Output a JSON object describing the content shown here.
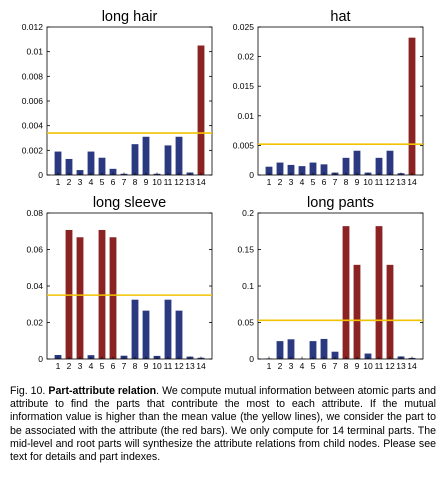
{
  "colors": {
    "attribute_bar": "#8b2323",
    "other_bar": "#2b3a80",
    "mean_line": "#f2c200",
    "axis": "#000000"
  },
  "chart_data": [
    {
      "type": "bar",
      "title": "long hair",
      "categories": [
        "1",
        "2",
        "3",
        "4",
        "5",
        "6",
        "7",
        "8",
        "9",
        "10",
        "11",
        "12",
        "13",
        "14"
      ],
      "values": [
        0.0019,
        0.0013,
        0.0004,
        0.0019,
        0.0014,
        0.0005,
        0.0001,
        0.0025,
        0.0031,
        0.0001,
        0.0024,
        0.0031,
        0.0002,
        0.0105
      ],
      "highlight": [
        false,
        false,
        false,
        false,
        false,
        false,
        false,
        false,
        false,
        false,
        false,
        false,
        false,
        true
      ],
      "mean": 0.0034,
      "ylim": [
        0,
        0.012
      ],
      "yticks": [
        "0",
        "0.002",
        "0.004",
        "0.006",
        "0.008",
        "0.01",
        "0.012"
      ],
      "xlabel": "",
      "ylabel": ""
    },
    {
      "type": "bar",
      "title": "hat",
      "categories": [
        "1",
        "2",
        "3",
        "4",
        "5",
        "6",
        "7",
        "8",
        "9",
        "10",
        "11",
        "12",
        "13",
        "14"
      ],
      "values": [
        0.0014,
        0.0021,
        0.0017,
        0.0015,
        0.0021,
        0.0018,
        0.0004,
        0.0029,
        0.0041,
        0.0004,
        0.0029,
        0.0041,
        0.0003,
        0.0232
      ],
      "highlight": [
        false,
        false,
        false,
        false,
        false,
        false,
        false,
        false,
        false,
        false,
        false,
        false,
        false,
        true
      ],
      "mean": 0.0052,
      "ylim": [
        0,
        0.025
      ],
      "yticks": [
        "0",
        "0.005",
        "0.01",
        "0.015",
        "0.02",
        "0.025"
      ],
      "xlabel": "",
      "ylabel": ""
    },
    {
      "type": "bar",
      "title": "long sleeve",
      "categories": [
        "1",
        "2",
        "3",
        "4",
        "5",
        "6",
        "7",
        "8",
        "9",
        "10",
        "11",
        "12",
        "13",
        "14"
      ],
      "values": [
        0.0022,
        0.0707,
        0.0667,
        0.0021,
        0.0707,
        0.0667,
        0.0018,
        0.0325,
        0.0265,
        0.0017,
        0.0325,
        0.0265,
        0.0013,
        0.0007
      ],
      "highlight": [
        false,
        true,
        true,
        false,
        true,
        true,
        false,
        false,
        false,
        false,
        false,
        false,
        false,
        false
      ],
      "mean": 0.035,
      "ylim": [
        0,
        0.08
      ],
      "yticks": [
        "0",
        "0.02",
        "0.04",
        "0.06",
        "0.08"
      ],
      "xlabel": "",
      "ylabel": ""
    },
    {
      "type": "bar",
      "title": "long pants",
      "categories": [
        "1",
        "2",
        "3",
        "4",
        "5",
        "6",
        "7",
        "8",
        "9",
        "10",
        "11",
        "12",
        "13",
        "14"
      ],
      "values": [
        0.0008,
        0.0245,
        0.027,
        0.0005,
        0.0245,
        0.0275,
        0.01,
        0.182,
        0.129,
        0.0075,
        0.182,
        0.129,
        0.0035,
        0.0015
      ],
      "highlight": [
        false,
        false,
        false,
        false,
        false,
        false,
        false,
        true,
        true,
        false,
        true,
        true,
        false,
        false
      ],
      "mean": 0.053,
      "ylim": [
        0,
        0.2
      ],
      "yticks": [
        "0",
        "0.05",
        "0.1",
        "0.15",
        "0.2"
      ],
      "xlabel": "",
      "ylabel": ""
    }
  ],
  "caption": {
    "label": "Fig. 10.",
    "title": "Part-attribute relation",
    "text": ". We compute mutual information between atomic parts and attribute to find the parts that contribute the most to each attribute. If the mutual information value is higher than the mean value (the yellow lines), we consider the part to be associated with the attribute (the red bars). We only compute for 14 terminal parts. The mid-level and root parts will synthesize the attribute relations from child nodes. Please see text for details and part indexes."
  }
}
